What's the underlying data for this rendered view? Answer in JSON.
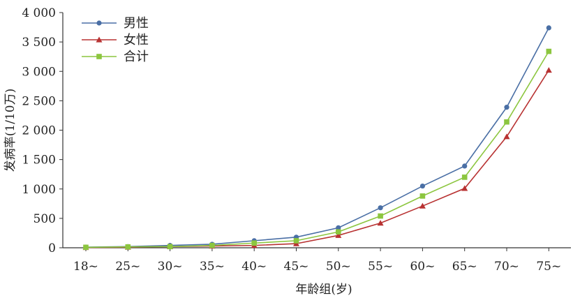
{
  "chart_data": {
    "type": "line",
    "categories": [
      "18~",
      "25~",
      "30~",
      "35~",
      "40~",
      "45~",
      "50~",
      "55~",
      "60~",
      "65~",
      "70~",
      "75~"
    ],
    "series": [
      {
        "name": "男性",
        "color": "#4a6fa5",
        "marker": "circle",
        "values": [
          10,
          20,
          40,
          60,
          120,
          180,
          340,
          680,
          1050,
          1390,
          2390,
          3740
        ]
      },
      {
        "name": "女性",
        "color": "#b83232",
        "marker": "triangle",
        "values": [
          5,
          10,
          20,
          30,
          40,
          70,
          210,
          420,
          710,
          1010,
          1890,
          3020
        ]
      },
      {
        "name": "合计",
        "color": "#8cc63f",
        "marker": "square",
        "values": [
          8,
          15,
          20,
          40,
          80,
          120,
          270,
          540,
          880,
          1200,
          2140,
          3340
        ]
      }
    ],
    "xlabel": "年龄组(岁)",
    "ylabel": "发病率(1/10万)",
    "ylim": [
      0,
      4000
    ],
    "yticks": [
      0,
      500,
      1000,
      1500,
      2000,
      2500,
      3000,
      3500,
      4000
    ],
    "ytick_labels": [
      "0",
      "500",
      "1 000",
      "1 500",
      "2 000",
      "2 500",
      "3 000",
      "3 500",
      "4 000"
    ],
    "legend_position": "top-left",
    "grid": false
  }
}
